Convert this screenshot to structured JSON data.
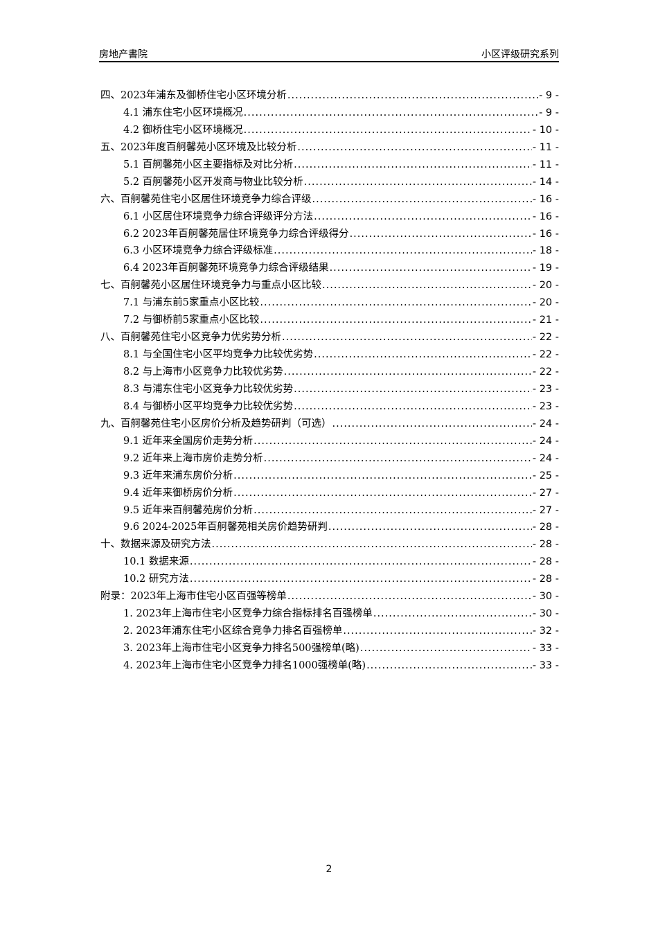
{
  "header": {
    "left": "房地产書院",
    "right": "小区评级研究系列"
  },
  "toc": [
    {
      "level": 1,
      "title": "四、2023年浦东及御桥住宅小区环境分析",
      "page": "- 9 -"
    },
    {
      "level": 2,
      "title": "4.1 浦东住宅小区环境概况",
      "page": "- 9 -"
    },
    {
      "level": 2,
      "title": "4.2 御桥住宅小区环境概况",
      "page": "- 10 -"
    },
    {
      "level": 1,
      "title": "五、2023年度百舸馨苑小区环境及比较分析",
      "page": "- 11 -"
    },
    {
      "level": 2,
      "title": "5.1 百舸馨苑小区主要指标及对比分析",
      "page": "- 11 -"
    },
    {
      "level": 2,
      "title": "5.2 百舸馨苑小区开发商与物业比较分析",
      "page": "- 14 -"
    },
    {
      "level": 1,
      "title": "六、百舸馨苑住宅小区居住环境竞争力综合评级",
      "page": "- 16 -"
    },
    {
      "level": 2,
      "title": "6.1 小区居住环境竞争力综合评级评分方法",
      "page": "- 16 -"
    },
    {
      "level": 2,
      "title": "6.2 2023年百舸馨苑居住环境竞争力综合评级得分",
      "page": "- 16 -"
    },
    {
      "level": 2,
      "title": "6.3 小区环境竞争力综合评级标准",
      "page": "- 18 -"
    },
    {
      "level": 2,
      "title": "6.4 2023年百舸馨苑环境竞争力综合评级结果",
      "page": "- 19 -"
    },
    {
      "level": 1,
      "title": "七、百舸馨苑小区居住环境竞争力与重点小区比较",
      "page": "- 20 -"
    },
    {
      "level": 2,
      "title": "7.1 与浦东前5家重点小区比较",
      "page": "- 20 -"
    },
    {
      "level": 2,
      "title": "7.2 与御桥前5家重点小区比较",
      "page": "- 21 -"
    },
    {
      "level": 1,
      "title": "八、百舸馨苑住宅小区竞争力优劣势分析",
      "page": "- 22 -"
    },
    {
      "level": 2,
      "title": "8.1 与全国住宅小区平均竞争力比较优劣势",
      "page": "- 22 -"
    },
    {
      "level": 2,
      "title": "8.2 与上海市小区竞争力比较优劣势",
      "page": "- 22 -"
    },
    {
      "level": 2,
      "title": "8.3 与浦东住宅小区竞争力比较优劣势",
      "page": "- 23 -"
    },
    {
      "level": 2,
      "title": "8.4 与御桥小区平均竞争力比较优劣势",
      "page": "- 23 -"
    },
    {
      "level": 1,
      "title": "九、百舸馨苑住宅小区房价分析及趋势研判（可选）",
      "page": "- 24 -"
    },
    {
      "level": 2,
      "title": "9.1 近年来全国房价走势分析",
      "page": "- 24 -"
    },
    {
      "level": 2,
      "title": "9.2 近年来上海市房价走势分析",
      "page": "- 24 -"
    },
    {
      "level": 2,
      "title": "9.3 近年来浦东房价分析",
      "page": "- 25 -"
    },
    {
      "level": 2,
      "title": "9.4 近年来御桥房价分析",
      "page": "- 27 -"
    },
    {
      "level": 2,
      "title": "9.5 近年来百舸馨苑房价分析",
      "page": "- 27 -"
    },
    {
      "level": 2,
      "title": "9.6 2024-2025年百舸馨苑相关房价趋势研判",
      "page": "- 28 -"
    },
    {
      "level": 1,
      "title": "十、数据来源及研究方法",
      "page": "- 28 -"
    },
    {
      "level": 2,
      "title": "10.1 数据来源",
      "page": "- 28 -"
    },
    {
      "level": 2,
      "title": "10.2 研究方法",
      "page": "- 28 -"
    },
    {
      "level": 1,
      "title": "附录：2023年上海市住宅小区百强等榜单",
      "page": "- 30 -"
    },
    {
      "level": 2,
      "title": "1. 2023年上海市住宅小区竞争力综合指标排名百强榜单",
      "page": "- 30 -"
    },
    {
      "level": 2,
      "title": "2. 2023年浦东住宅小区综合竞争力排名百强榜单",
      "page": "- 32 -"
    },
    {
      "level": 2,
      "title": "3. 2023年上海市住宅小区竞争力排名500强榜单(略)",
      "page": "- 33 -"
    },
    {
      "level": 2,
      "title": "4. 2023年上海市住宅小区竞争力排名1000强榜单(略)",
      "page": "- 33 -"
    }
  ],
  "footer": {
    "page_number": "2"
  }
}
